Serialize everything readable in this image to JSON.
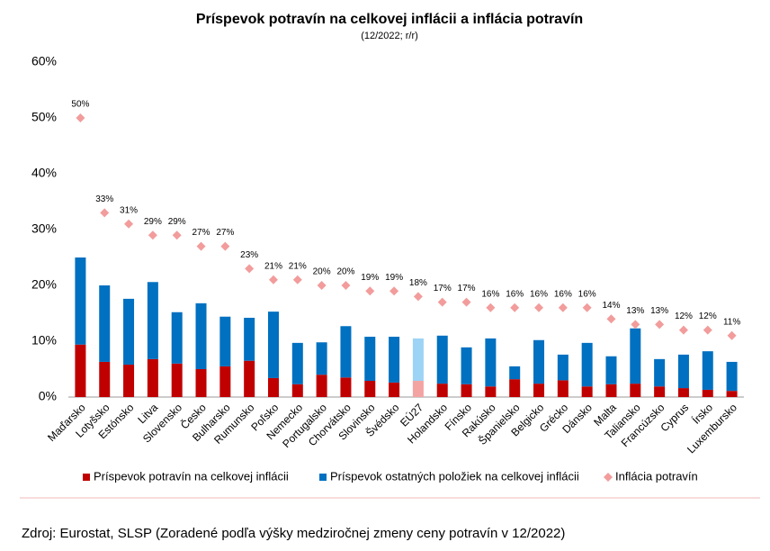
{
  "chart_data": {
    "type": "bar",
    "stacked": true,
    "title": "Príspevok potravín na celkovej inflácii a inflácia potravín",
    "subtitle": "(12/2022; r/r)",
    "source": "Zdroj: Eurostat, SLSP (Zoradené podľa výšky medziročnej zmeny ceny potravín v 12/2022)",
    "categories": [
      "Maďarsko",
      "Lotyšsko",
      "Estónsko",
      "Litva",
      "Slovensko",
      "Česko",
      "Bulharsko",
      "Rumunsko",
      "Poľsko",
      "Nemecko",
      "Portugalsko",
      "Chorvátsko",
      "Slovinsko",
      "Švédsko",
      "EÚ27",
      "Holandsko",
      "Fínsko",
      "Rakúsko",
      "Španielsko",
      "Belgicko",
      "Grécko",
      "Dánsko",
      "Malta",
      "Taliansko",
      "Francúzsko",
      "Cyprus",
      "Írsko",
      "Luxembursko"
    ],
    "highlight": 14,
    "series": [
      {
        "name": "Príspevok potravín na celkovej inflácii",
        "type": "bar",
        "color": "#c00000",
        "highlight_color": "#f4a3a3",
        "values": [
          9.4,
          6.3,
          5.8,
          6.8,
          6.0,
          5.0,
          5.5,
          6.5,
          3.4,
          2.3,
          4.0,
          3.5,
          2.9,
          2.6,
          2.9,
          2.4,
          2.3,
          1.9,
          3.2,
          2.4,
          3.0,
          1.9,
          2.3,
          2.4,
          1.9,
          1.6,
          1.3,
          1.1
        ]
      },
      {
        "name": "Príspevok ostatných položiek na celkovej inflácii",
        "type": "bar",
        "color": "#0070c0",
        "highlight_color": "#9dd3f5",
        "values": [
          15.6,
          13.7,
          11.8,
          13.8,
          9.2,
          11.8,
          8.9,
          7.7,
          11.9,
          7.4,
          5.8,
          9.2,
          7.9,
          8.2,
          7.6,
          8.6,
          6.6,
          8.6,
          2.3,
          7.8,
          4.6,
          7.8,
          5.0,
          9.9,
          4.9,
          6.0,
          6.9,
          5.2
        ]
      },
      {
        "name": "Inflácia potravín",
        "type": "scatter",
        "color": "#f29c9c",
        "highlight_color": "#f29c9c",
        "values": [
          50,
          33,
          31,
          29,
          29,
          27,
          27,
          23,
          21,
          21,
          20,
          20,
          19,
          19,
          18,
          17,
          17,
          16,
          16,
          16,
          16,
          16,
          14,
          13,
          13,
          12,
          12,
          11
        ],
        "value_labels": [
          "50%",
          "33%",
          "31%",
          "29%",
          "29%",
          "27%",
          "27%",
          "23%",
          "21%",
          "21%",
          "20%",
          "20%",
          "19%",
          "19%",
          "18%",
          "17%",
          "17%",
          "16%",
          "16%",
          "16%",
          "16%",
          "16%",
          "14%",
          "13%",
          "13%",
          "12%",
          "12%",
          "11%"
        ]
      }
    ],
    "ylim": [
      0,
      60
    ],
    "yticks": [
      {
        "value": 0,
        "label": "0%"
      },
      {
        "value": 10,
        "label": "10%"
      },
      {
        "value": 20,
        "label": "20%"
      },
      {
        "value": 30,
        "label": "30%"
      },
      {
        "value": 40,
        "label": "40%"
      },
      {
        "value": 50,
        "label": "50%"
      },
      {
        "value": 60,
        "label": "60%"
      }
    ],
    "grid": false
  }
}
